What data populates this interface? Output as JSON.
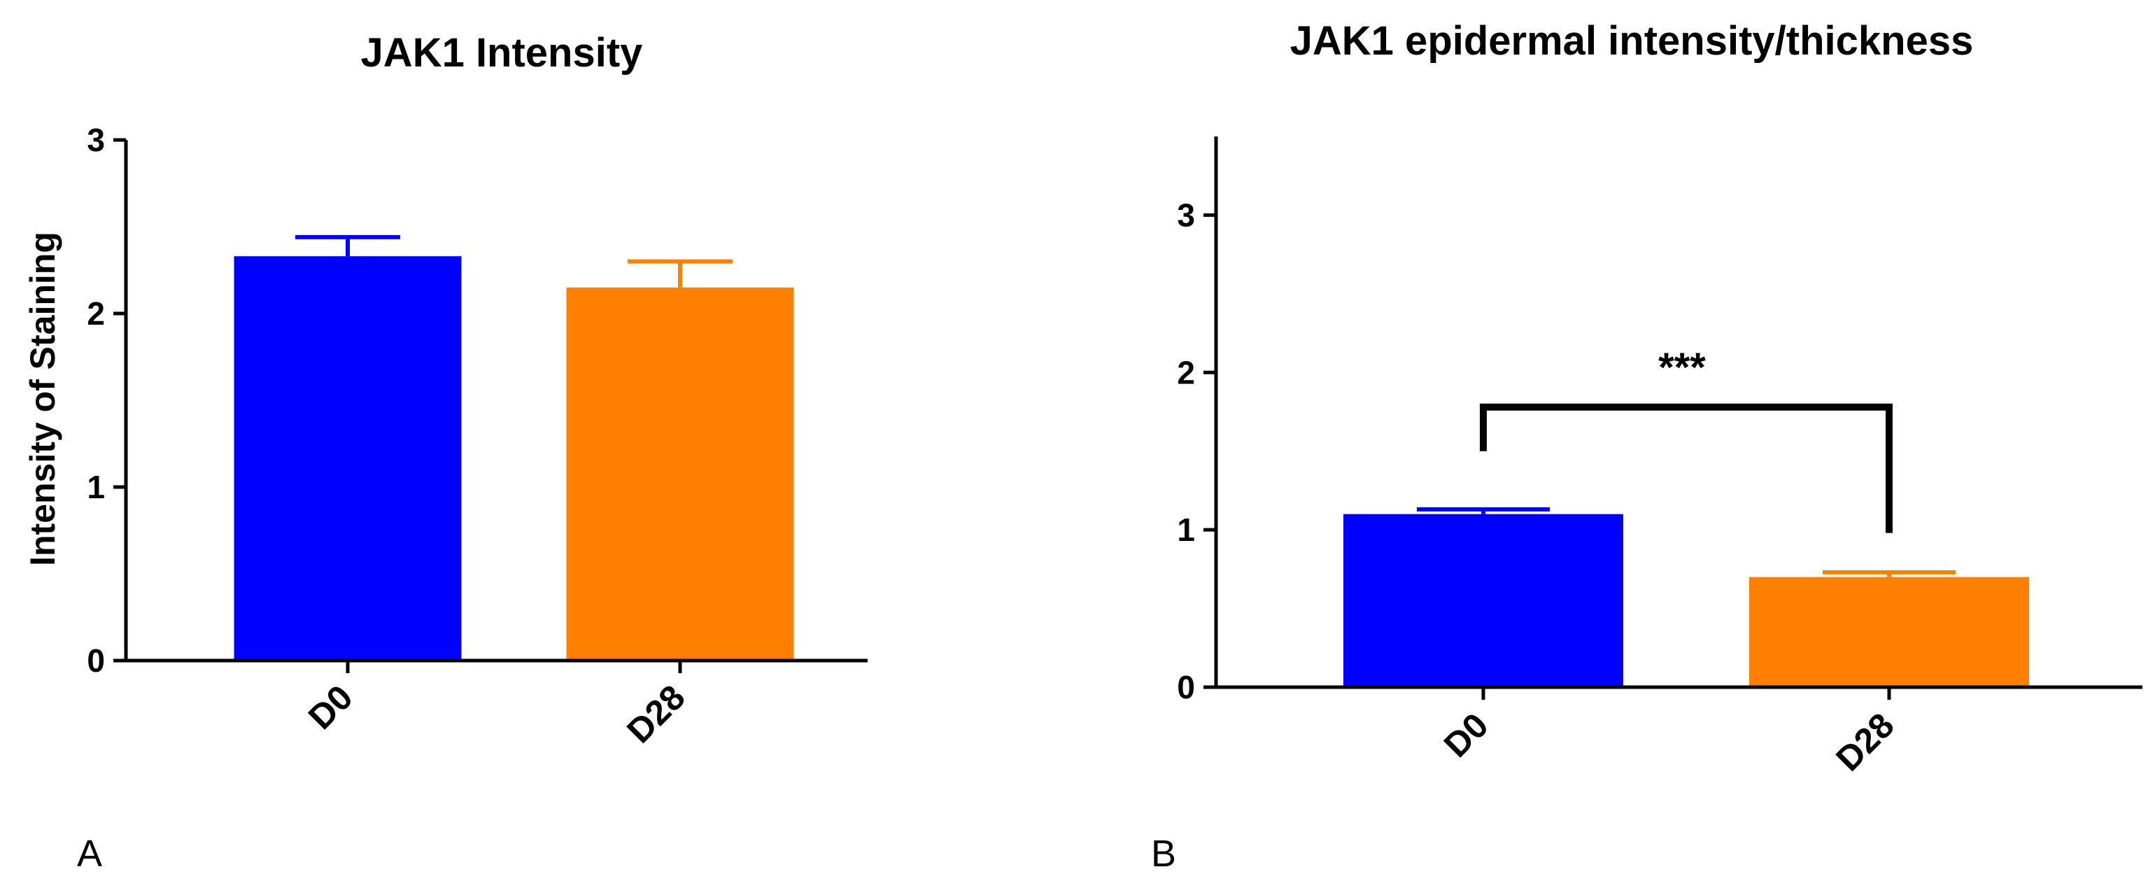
{
  "chart_data": [
    {
      "panel": "A",
      "type": "bar",
      "title": "JAK1 Intensity",
      "xlabel": "",
      "ylabel": "Intensity of Staining",
      "categories": [
        "D0",
        "D28"
      ],
      "values": [
        2.33,
        2.15
      ],
      "errors": [
        0.11,
        0.15
      ],
      "colors": [
        "#0000ff",
        "#ff8000"
      ],
      "ylim": [
        0,
        3
      ],
      "yticks": [
        "0",
        "1",
        "2",
        "3"
      ],
      "grid": false
    },
    {
      "panel": "B",
      "type": "bar",
      "title": "JAK1 epidermal intensity/thickness",
      "xlabel": "",
      "ylabel": "",
      "categories": [
        "D0",
        "D28"
      ],
      "values": [
        1.1,
        0.7
      ],
      "errors": [
        0.03,
        0.03
      ],
      "colors": [
        "#0000ff",
        "#ff8000"
      ],
      "ylim": [
        0,
        3.5
      ],
      "yticks": [
        "0",
        "1",
        "2",
        "3"
      ],
      "grid": false,
      "significance": {
        "label": "***",
        "bracket_y": 1.78,
        "left_drop_y": 1.5,
        "right_drop_y": 0.98
      }
    }
  ]
}
